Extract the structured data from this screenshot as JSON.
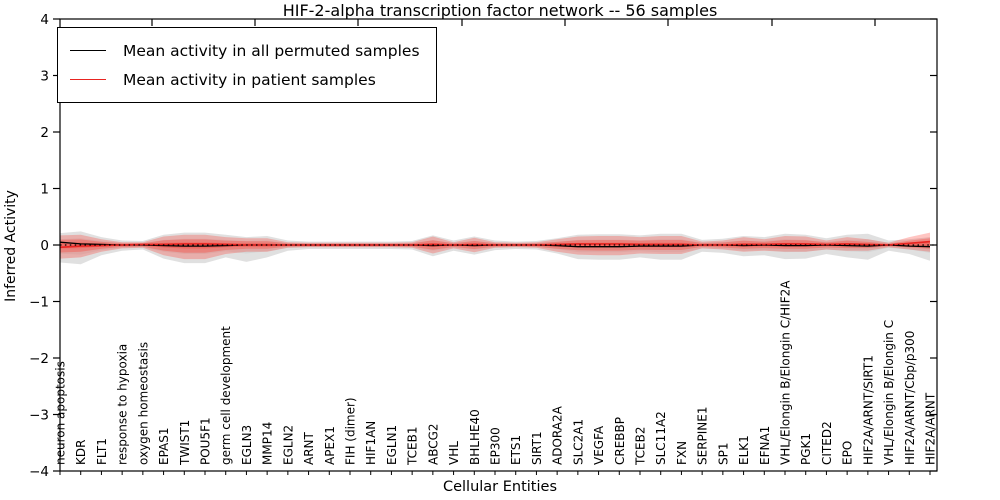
{
  "chart_data": {
    "type": "line",
    "title": "HIF-2-alpha transcription factor network -- 56 samples",
    "xlabel": "Cellular Entities",
    "ylabel": "Inferred Activity",
    "ylim": [
      -4,
      4
    ],
    "yticks": [
      -4,
      -3,
      -2,
      -1,
      0,
      1,
      2,
      3,
      4
    ],
    "grid": false,
    "legend": {
      "position": "upper left",
      "entries": [
        {
          "label": "Mean activity in all permuted samples",
          "color": "#000000"
        },
        {
          "label": "Mean activity in patient samples",
          "color": "#e82421"
        }
      ]
    },
    "categories": [
      "neuron apoptosis",
      "KDR",
      "FLT1",
      "response to hypoxia",
      "oxygen homeostasis",
      "EPAS1",
      "TWIST1",
      "POU5F1",
      "germ cell development",
      "EGLN3",
      "MMP14",
      "EGLN2",
      "ARNT",
      "APEX1",
      "FIH (dimer)",
      "HIF1AN",
      "EGLN1",
      "TCEB1",
      "ABCG2",
      "VHL",
      "BHLHE40",
      "EP300",
      "ETS1",
      "SIRT1",
      "ADORA2A",
      "SLC2A1",
      "VEGFA",
      "CREBBP",
      "TCEB2",
      "SLC11A2",
      "FXN",
      "SERPINE1",
      "SP1",
      "ELK1",
      "EFNA1",
      "VHL/Elongin B/Elongin C/HIF2A",
      "PGK1",
      "CITED2",
      "EPO",
      "HIF2A/ARNT/SIRT1",
      "VHL/Elongin B/Elongin C",
      "HIF2A/ARNT/Cbp/p300",
      "HIF2A/ARNT"
    ],
    "series": [
      {
        "name": "Mean activity in all permuted samples",
        "color": "#000000",
        "values": [
          0.05,
          0.02,
          0.01,
          0.0,
          0.0,
          -0.01,
          -0.02,
          -0.02,
          -0.01,
          0.0,
          0.0,
          0.0,
          0.0,
          0.0,
          0.0,
          0.0,
          0.0,
          0.0,
          -0.01,
          0.0,
          -0.01,
          0.0,
          0.0,
          0.0,
          -0.01,
          -0.03,
          -0.03,
          -0.03,
          -0.02,
          -0.02,
          -0.02,
          0.0,
          0.0,
          -0.01,
          0.0,
          -0.01,
          -0.01,
          0.0,
          -0.01,
          -0.02,
          0.0,
          -0.02,
          -0.03
        ]
      },
      {
        "name": "Mean activity in patient samples",
        "color": "#e82421",
        "values": [
          -0.04,
          -0.02,
          -0.01,
          0.0,
          0.01,
          0.01,
          0.02,
          0.02,
          0.01,
          0.0,
          0.0,
          0.0,
          0.0,
          0.0,
          0.0,
          0.0,
          0.0,
          0.0,
          0.01,
          0.0,
          0.01,
          0.0,
          0.0,
          0.0,
          0.01,
          0.02,
          0.02,
          0.02,
          0.01,
          0.01,
          0.01,
          0.0,
          0.0,
          0.01,
          0.01,
          0.02,
          0.02,
          0.01,
          0.02,
          0.01,
          0.0,
          0.03,
          0.06
        ]
      }
    ],
    "bands": [
      {
        "name": "permuted-samples-std-band",
        "color": "#999999",
        "opacity": 0.3,
        "upper": [
          0.21,
          0.24,
          0.14,
          0.08,
          0.07,
          0.18,
          0.22,
          0.22,
          0.18,
          0.14,
          0.16,
          0.08,
          0.06,
          0.06,
          0.06,
          0.06,
          0.06,
          0.07,
          0.17,
          0.08,
          0.15,
          0.08,
          0.06,
          0.07,
          0.12,
          0.18,
          0.19,
          0.19,
          0.17,
          0.2,
          0.2,
          0.09,
          0.11,
          0.16,
          0.14,
          0.2,
          0.18,
          0.12,
          0.18,
          0.2,
          0.08,
          0.1,
          0.14
        ],
        "lower": [
          -0.31,
          -0.34,
          -0.18,
          -0.1,
          -0.08,
          -0.24,
          -0.32,
          -0.32,
          -0.22,
          -0.3,
          -0.22,
          -0.1,
          -0.07,
          -0.07,
          -0.07,
          -0.07,
          -0.07,
          -0.08,
          -0.2,
          -0.1,
          -0.17,
          -0.09,
          -0.07,
          -0.08,
          -0.15,
          -0.25,
          -0.26,
          -0.26,
          -0.22,
          -0.26,
          -0.26,
          -0.12,
          -0.14,
          -0.2,
          -0.18,
          -0.25,
          -0.24,
          -0.16,
          -0.22,
          -0.26,
          -0.1,
          -0.16,
          -0.28
        ]
      },
      {
        "name": "patient-samples-std-band",
        "color": "#ff2f23",
        "opacity": 0.28,
        "upper": [
          0.17,
          0.18,
          0.1,
          0.05,
          0.05,
          0.15,
          0.18,
          0.18,
          0.14,
          0.12,
          0.12,
          0.05,
          0.04,
          0.04,
          0.04,
          0.04,
          0.04,
          0.05,
          0.15,
          0.05,
          0.13,
          0.05,
          0.04,
          0.05,
          0.1,
          0.15,
          0.16,
          0.16,
          0.14,
          0.16,
          0.16,
          0.06,
          0.08,
          0.14,
          0.1,
          0.16,
          0.15,
          0.08,
          0.14,
          0.1,
          0.04,
          0.14,
          0.22
        ],
        "lower": [
          -0.24,
          -0.22,
          -0.12,
          -0.06,
          -0.05,
          -0.18,
          -0.25,
          -0.25,
          -0.16,
          -0.12,
          -0.12,
          -0.05,
          -0.04,
          -0.04,
          -0.04,
          -0.04,
          -0.04,
          -0.05,
          -0.15,
          -0.06,
          -0.13,
          -0.05,
          -0.04,
          -0.05,
          -0.12,
          -0.17,
          -0.18,
          -0.18,
          -0.15,
          -0.16,
          -0.16,
          -0.06,
          -0.08,
          -0.12,
          -0.1,
          -0.12,
          -0.12,
          -0.08,
          -0.1,
          -0.1,
          -0.04,
          -0.08,
          -0.12
        ]
      }
    ],
    "zero_line": {
      "y": 0,
      "style": "dotted",
      "color": "#000000"
    }
  }
}
